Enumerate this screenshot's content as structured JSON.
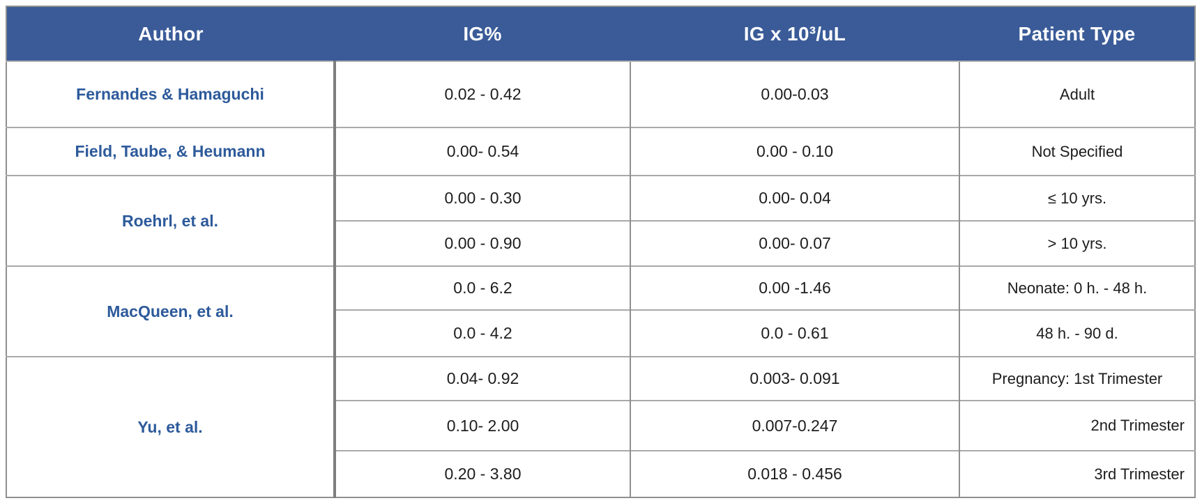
{
  "colors": {
    "header_bg": "#3a5b98",
    "header_text": "#ffffff",
    "author_text": "#2d5a9b",
    "body_text": "#1d1d1d",
    "grid_line": "#a9a9a9",
    "outer_border": "#8f8f8f",
    "thick_divider": "#7e7e7e"
  },
  "table": {
    "headers": {
      "author": "Author",
      "ig_pct": "IG%",
      "ig_abs": "IG x 10³/uL",
      "patient_type": "Patient Type"
    },
    "authors": [
      {
        "name": "Fernandes & Hamaguchi",
        "rows": 1
      },
      {
        "name": "Field, Taube, & Heumann",
        "rows": 1
      },
      {
        "name": "Roehrl, et al.",
        "rows": 2
      },
      {
        "name": "MacQueen, et al.",
        "rows": 2
      },
      {
        "name": "Yu, et al.",
        "rows": 3
      }
    ],
    "rows": [
      {
        "ig_pct": "0.02 - 0.42",
        "ig_abs": "0.00-0.03",
        "patient_type": "Adult"
      },
      {
        "ig_pct": "0.00- 0.54",
        "ig_abs": "0.00 - 0.10",
        "patient_type": "Not Specified"
      },
      {
        "ig_pct": "0.00 - 0.30",
        "ig_abs": "0.00- 0.04",
        "patient_type": "≤ 10 yrs."
      },
      {
        "ig_pct": "0.00 - 0.90",
        "ig_abs": "0.00- 0.07",
        "patient_type": "> 10 yrs."
      },
      {
        "ig_pct": "0.0 - 6.2",
        "ig_abs": "0.00 -1.46",
        "patient_type": "Neonate: 0 h. - 48 h."
      },
      {
        "ig_pct": "0.0 - 4.2",
        "ig_abs": "0.0 - 0.61",
        "patient_type": "48 h. - 90 d."
      },
      {
        "ig_pct": "0.04- 0.92",
        "ig_abs": "0.003- 0.091",
        "patient_type": "Pregnancy: 1st Trimester"
      },
      {
        "ig_pct": "0.10- 2.00",
        "ig_abs": "0.007-0.247",
        "patient_type": "2nd Trimester"
      },
      {
        "ig_pct": "0.20 - 3.80",
        "ig_abs": "0.018 - 0.456",
        "patient_type": "3rd Trimester"
      }
    ]
  }
}
